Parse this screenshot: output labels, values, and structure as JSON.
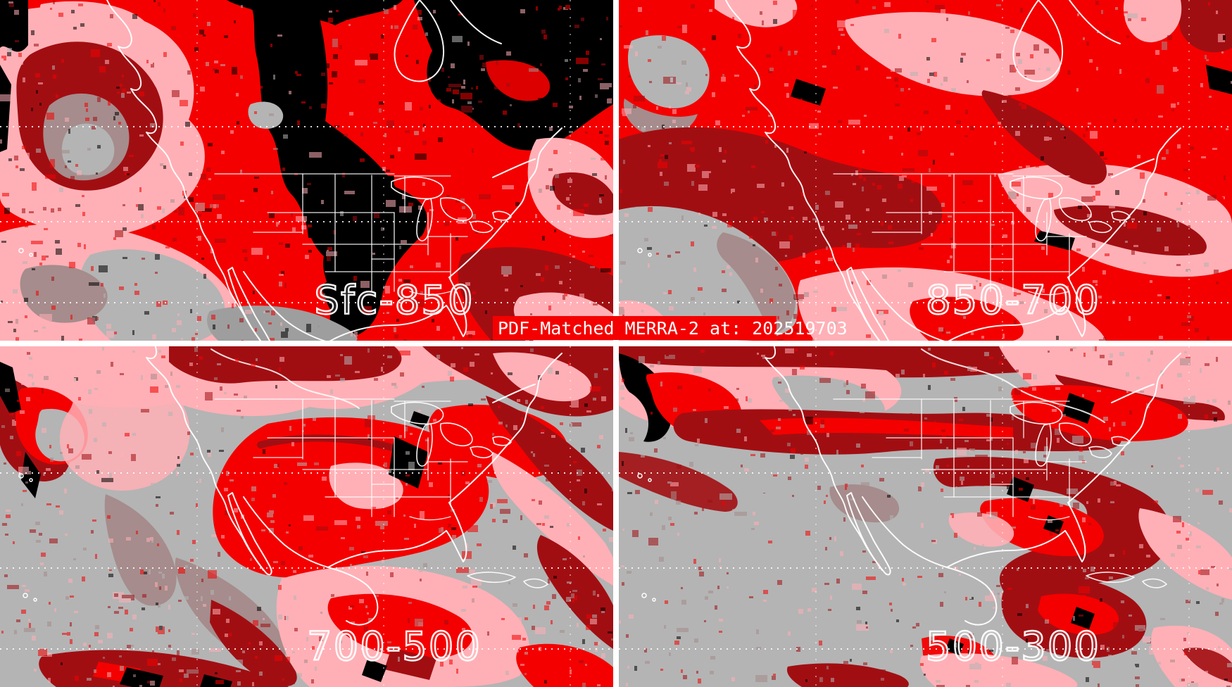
{
  "title_bar": {
    "text": "PDF-Matched MERRA-2 at: 202519703"
  },
  "panels": [
    {
      "id": "sfc-850",
      "label": "Sfc-850"
    },
    {
      "id": "850-700",
      "label": "850-700"
    },
    {
      "id": "700-500",
      "label": "700-500"
    },
    {
      "id": "500-300",
      "label": "500-300"
    }
  ],
  "palette": {
    "red": "#f40000",
    "dark_red": "#a10e12",
    "pink": "#ffb0b6",
    "light_gray": "#b4b4b4",
    "mid_gray": "#9e9e9e",
    "rosy_gray": "#a68c8c",
    "black": "#000000",
    "map_lines": "#ffffff",
    "divider": "#ffffff",
    "label_outline": "#ffffff",
    "title_bg": "#f40000",
    "title_text": "#ffffff"
  }
}
